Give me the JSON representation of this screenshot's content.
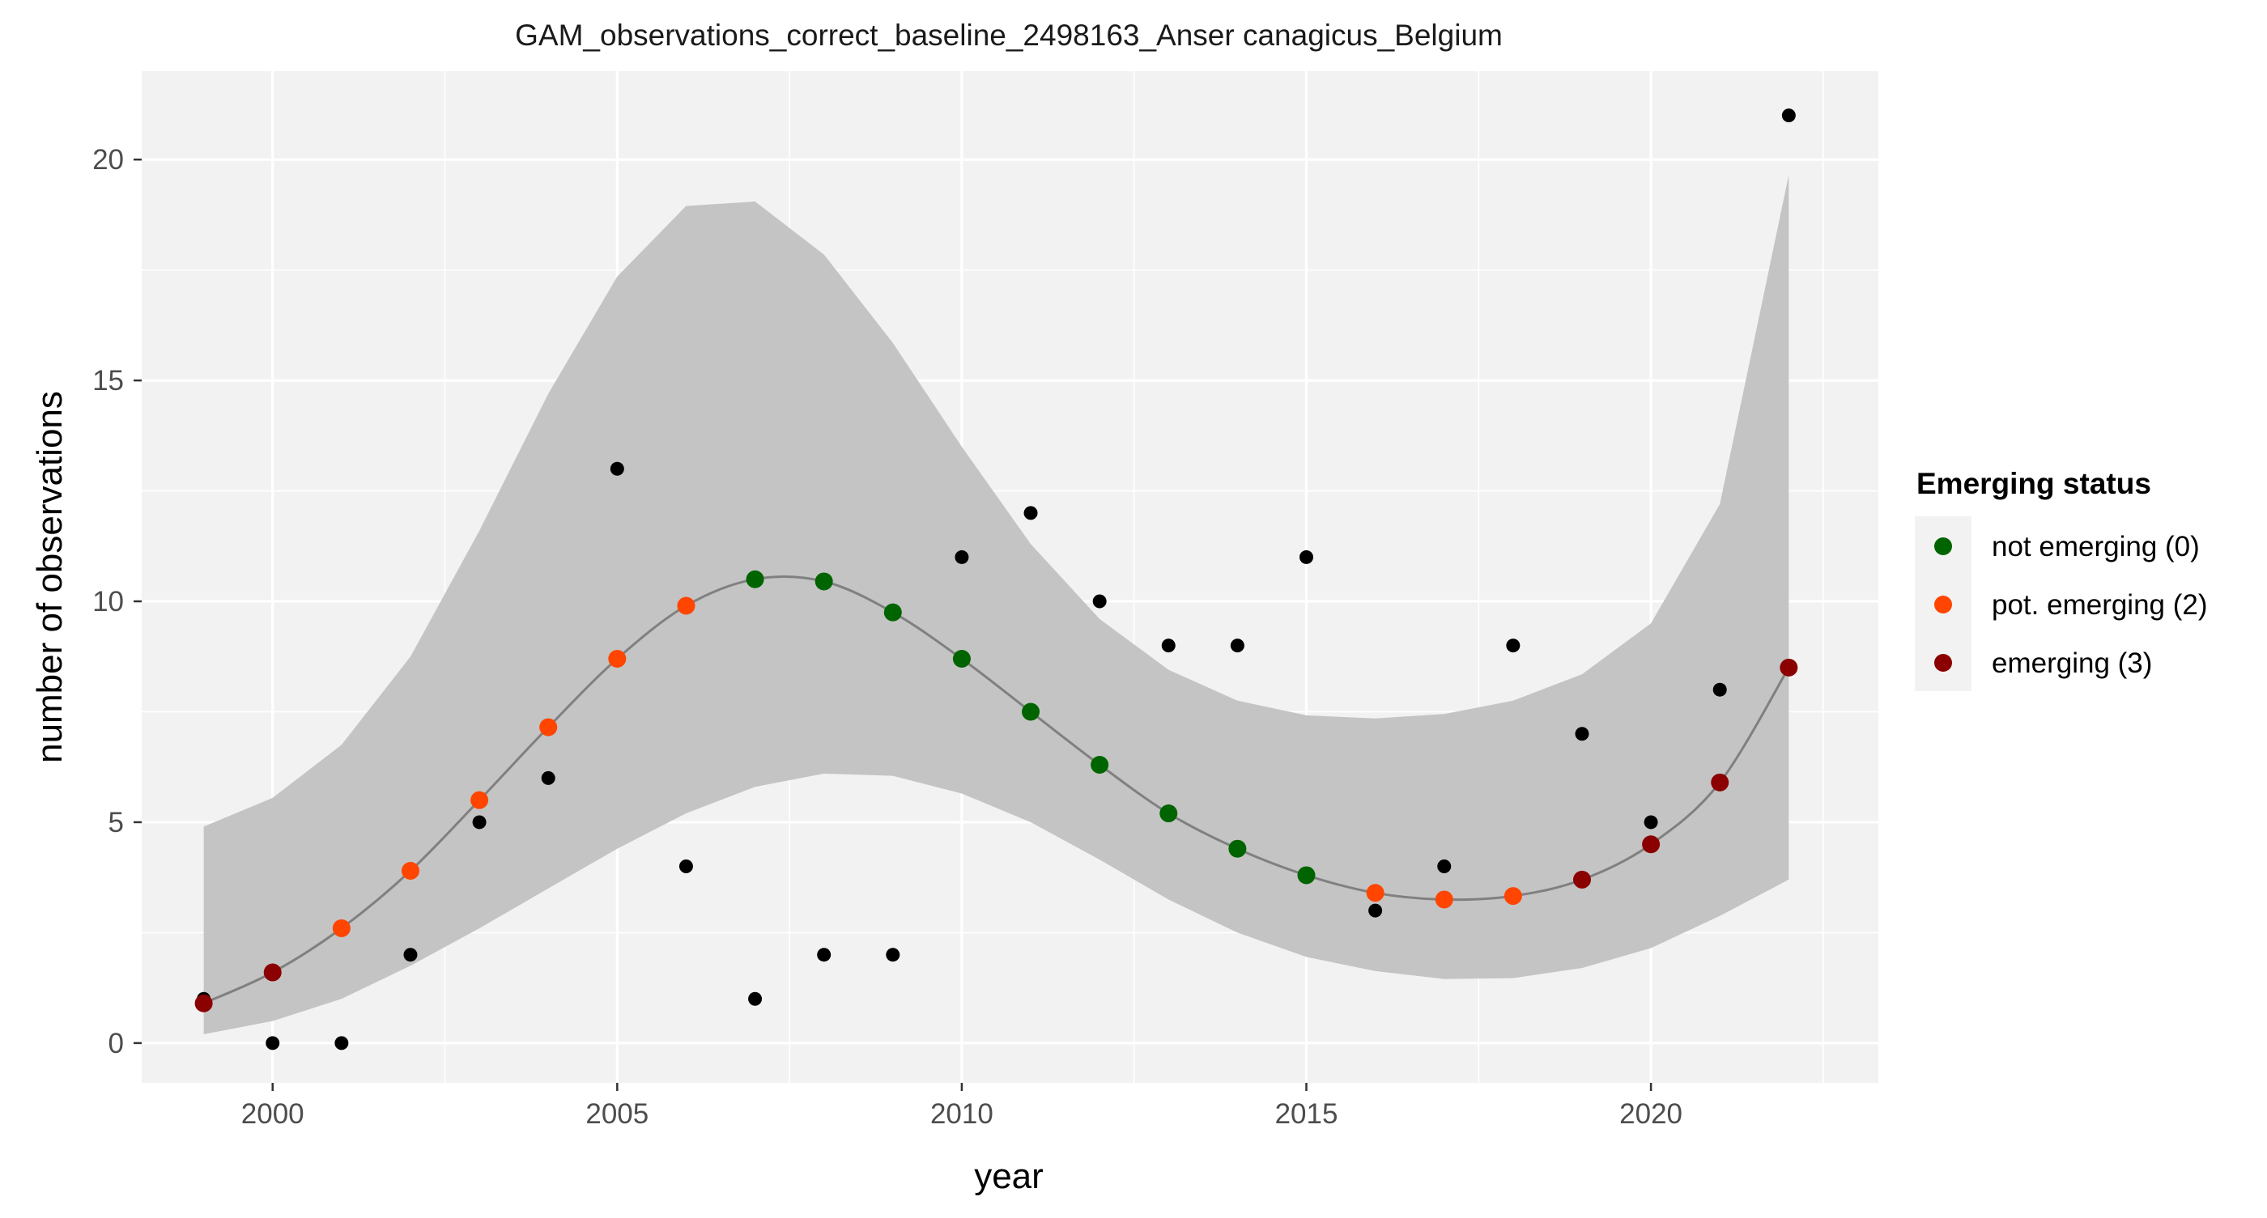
{
  "chart_data": {
    "type": "scatter",
    "title": "GAM_observations_correct_baseline_2498163_Anser canagicus_Belgium",
    "xlabel": "year",
    "ylabel": "number of observations",
    "xlim": [
      1998.1,
      2023.3
    ],
    "ylim": [
      -0.9,
      22.0
    ],
    "x_ticks": [
      2000,
      2005,
      2010,
      2015,
      2020
    ],
    "y_ticks": [
      0,
      5,
      10,
      15,
      20
    ],
    "grid": true,
    "legend": {
      "title": "Emerging status",
      "placement": "right",
      "entries": [
        {
          "label": "not emerging (0)",
          "color": "#006400"
        },
        {
          "label": "pot. emerging (2)",
          "color": "#FF4500"
        },
        {
          "label": "emerging (3)",
          "color": "#8B0000"
        }
      ]
    },
    "colors": {
      "panel_background": "#F2F2F2",
      "grid": "#FFFFFF",
      "ribbon": "#C4C4C4",
      "fit_line": "#808080",
      "observed_point": "#000000"
    },
    "observed": {
      "x": [
        1999,
        2000,
        2001,
        2002,
        2003,
        2004,
        2005,
        2006,
        2007,
        2008,
        2009,
        2010,
        2011,
        2012,
        2013,
        2014,
        2015,
        2016,
        2017,
        2018,
        2019,
        2020,
        2021,
        2022
      ],
      "y": [
        1,
        0,
        0,
        2,
        5,
        6,
        13,
        4,
        1,
        2,
        2,
        11,
        12,
        10,
        9,
        9,
        11,
        3,
        4,
        9,
        7,
        5,
        8,
        21
      ]
    },
    "fit": {
      "x": [
        1999,
        2000,
        2001,
        2002,
        2003,
        2004,
        2005,
        2006,
        2007,
        2008,
        2009,
        2010,
        2011,
        2012,
        2013,
        2014,
        2015,
        2016,
        2017,
        2018,
        2019,
        2020,
        2021,
        2022
      ],
      "y": [
        0.9,
        1.6,
        2.6,
        3.9,
        5.5,
        7.15,
        8.7,
        9.9,
        10.5,
        10.45,
        9.75,
        8.7,
        7.5,
        6.3,
        5.2,
        4.4,
        3.8,
        3.4,
        3.25,
        3.33,
        3.7,
        4.5,
        5.9,
        8.5
      ],
      "lower": [
        0.2,
        0.5,
        1.0,
        1.75,
        2.6,
        3.5,
        4.4,
        5.2,
        5.8,
        6.1,
        6.05,
        5.65,
        5.0,
        4.15,
        3.25,
        2.5,
        1.95,
        1.63,
        1.45,
        1.47,
        1.7,
        2.15,
        2.88,
        3.7
      ],
      "upper": [
        4.9,
        5.55,
        6.75,
        8.75,
        11.6,
        14.7,
        17.35,
        18.95,
        19.05,
        17.85,
        15.85,
        13.5,
        11.3,
        9.6,
        8.45,
        7.75,
        7.42,
        7.35,
        7.45,
        7.75,
        8.35,
        9.5,
        12.2,
        19.65
      ],
      "status": [
        "emerging (3)",
        "emerging (3)",
        "pot. emerging (2)",
        "pot. emerging (2)",
        "pot. emerging (2)",
        "pot. emerging (2)",
        "pot. emerging (2)",
        "pot. emerging (2)",
        "not emerging (0)",
        "not emerging (0)",
        "not emerging (0)",
        "not emerging (0)",
        "not emerging (0)",
        "not emerging (0)",
        "not emerging (0)",
        "not emerging (0)",
        "not emerging (0)",
        "pot. emerging (2)",
        "pot. emerging (2)",
        "pot. emerging (2)",
        "emerging (3)",
        "emerging (3)",
        "emerging (3)",
        "emerging (3)"
      ]
    }
  }
}
